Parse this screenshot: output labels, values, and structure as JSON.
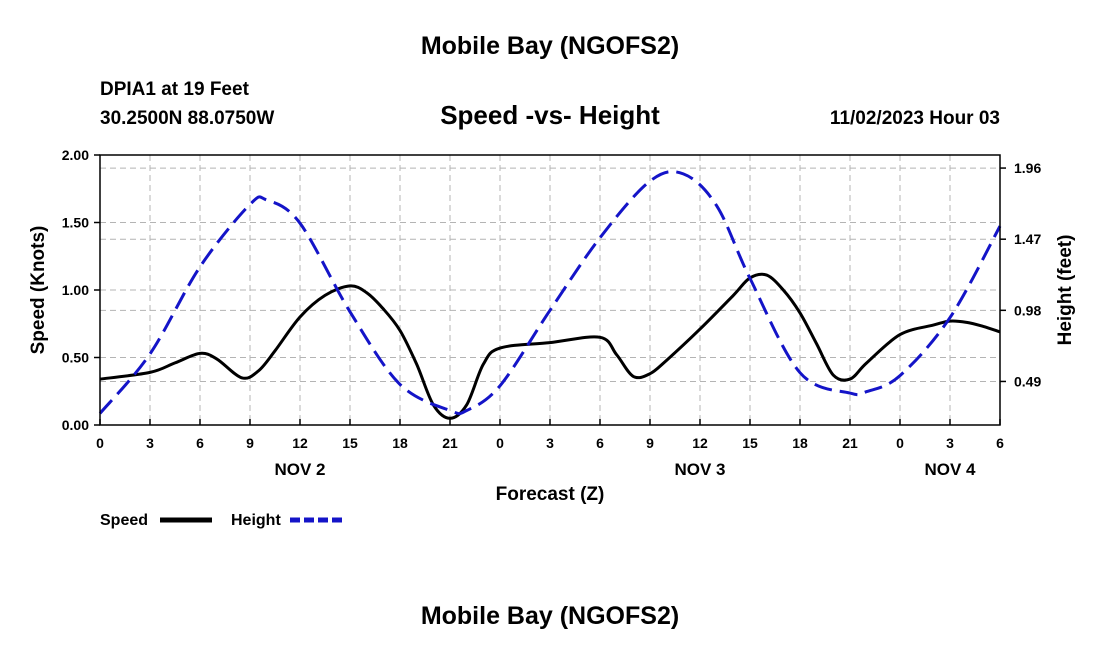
{
  "header": {
    "title": "Mobile Bay (NGOFS2)",
    "station": "DPIA1 at 19 Feet",
    "coords": "30.2500N  88.0750W",
    "subtitle": "Speed -vs- Height",
    "datetime": "11/02/2023 Hour 03"
  },
  "footer": {
    "title": "Mobile Bay (NGOFS2)"
  },
  "legend": {
    "speed_label": "Speed",
    "height_label": "Height"
  },
  "colors": {
    "speed": "#000000",
    "height": "#1414c8",
    "grid": "#b4b4b4"
  },
  "chart_data": {
    "type": "line",
    "title": "Speed -vs- Height",
    "xlabel": "Forecast (Z)",
    "ylabel": "Speed (Knots)",
    "y2label": "Height (feet)",
    "xlim": [
      0,
      54
    ],
    "ylim": [
      0,
      2.0
    ],
    "y2lim": [
      0.19,
      2.05
    ],
    "xticks": [
      0,
      3,
      6,
      9,
      12,
      15,
      18,
      21,
      24,
      27,
      30,
      33,
      36,
      39,
      42,
      45,
      48,
      51,
      54
    ],
    "xtick_labels": [
      "0",
      "3",
      "6",
      "9",
      "12",
      "15",
      "18",
      "21",
      "0",
      "3",
      "6",
      "9",
      "12",
      "15",
      "18",
      "21",
      "0",
      "3",
      "6"
    ],
    "yticks": [
      0,
      0.5,
      1.0,
      1.5,
      2.0
    ],
    "ytick_labels": [
      "0.00",
      "0.50",
      "1.00",
      "1.50",
      "2.00"
    ],
    "y2ticks": [
      0.49,
      0.98,
      1.47,
      1.96
    ],
    "y2tick_labels": [
      "0.49",
      "0.98",
      "1.47",
      "1.96"
    ],
    "date_labels": [
      {
        "x": 12,
        "label": "NOV 2"
      },
      {
        "x": 36,
        "label": "NOV 3"
      },
      {
        "x": 51,
        "label": "NOV 4"
      }
    ],
    "series": [
      {
        "name": "Speed",
        "axis": "left",
        "style": "solid",
        "x": [
          0,
          3,
          4.5,
          6,
          7,
          8.5,
          9.5,
          10.5,
          12,
          13.5,
          15,
          16,
          17,
          18,
          19,
          20,
          21,
          22,
          23,
          24,
          27,
          30,
          31,
          32,
          33,
          34,
          36,
          38,
          39,
          40,
          41,
          42,
          43,
          44,
          45,
          46,
          48,
          50,
          51,
          52,
          53,
          54
        ],
        "y": [
          0.34,
          0.39,
          0.46,
          0.53,
          0.49,
          0.35,
          0.4,
          0.55,
          0.8,
          0.96,
          1.03,
          0.98,
          0.86,
          0.7,
          0.45,
          0.15,
          0.05,
          0.15,
          0.45,
          0.57,
          0.61,
          0.65,
          0.52,
          0.36,
          0.38,
          0.48,
          0.71,
          0.96,
          1.09,
          1.11,
          1.0,
          0.83,
          0.6,
          0.37,
          0.34,
          0.46,
          0.67,
          0.74,
          0.77,
          0.76,
          0.73,
          0.69
        ]
      },
      {
        "name": "Height",
        "axis": "right",
        "style": "dashed",
        "x": [
          0,
          3,
          6,
          9,
          10,
          12,
          15,
          18,
          21,
          22,
          24,
          27,
          30,
          33,
          35,
          37,
          39,
          42,
          45,
          46,
          48,
          51,
          54
        ],
        "y": [
          0.27,
          0.68,
          1.28,
          1.71,
          1.74,
          1.58,
          0.97,
          0.47,
          0.29,
          0.29,
          0.46,
          0.98,
          1.48,
          1.87,
          1.92,
          1.7,
          1.2,
          0.55,
          0.41,
          0.42,
          0.53,
          0.93,
          1.56
        ]
      }
    ]
  }
}
